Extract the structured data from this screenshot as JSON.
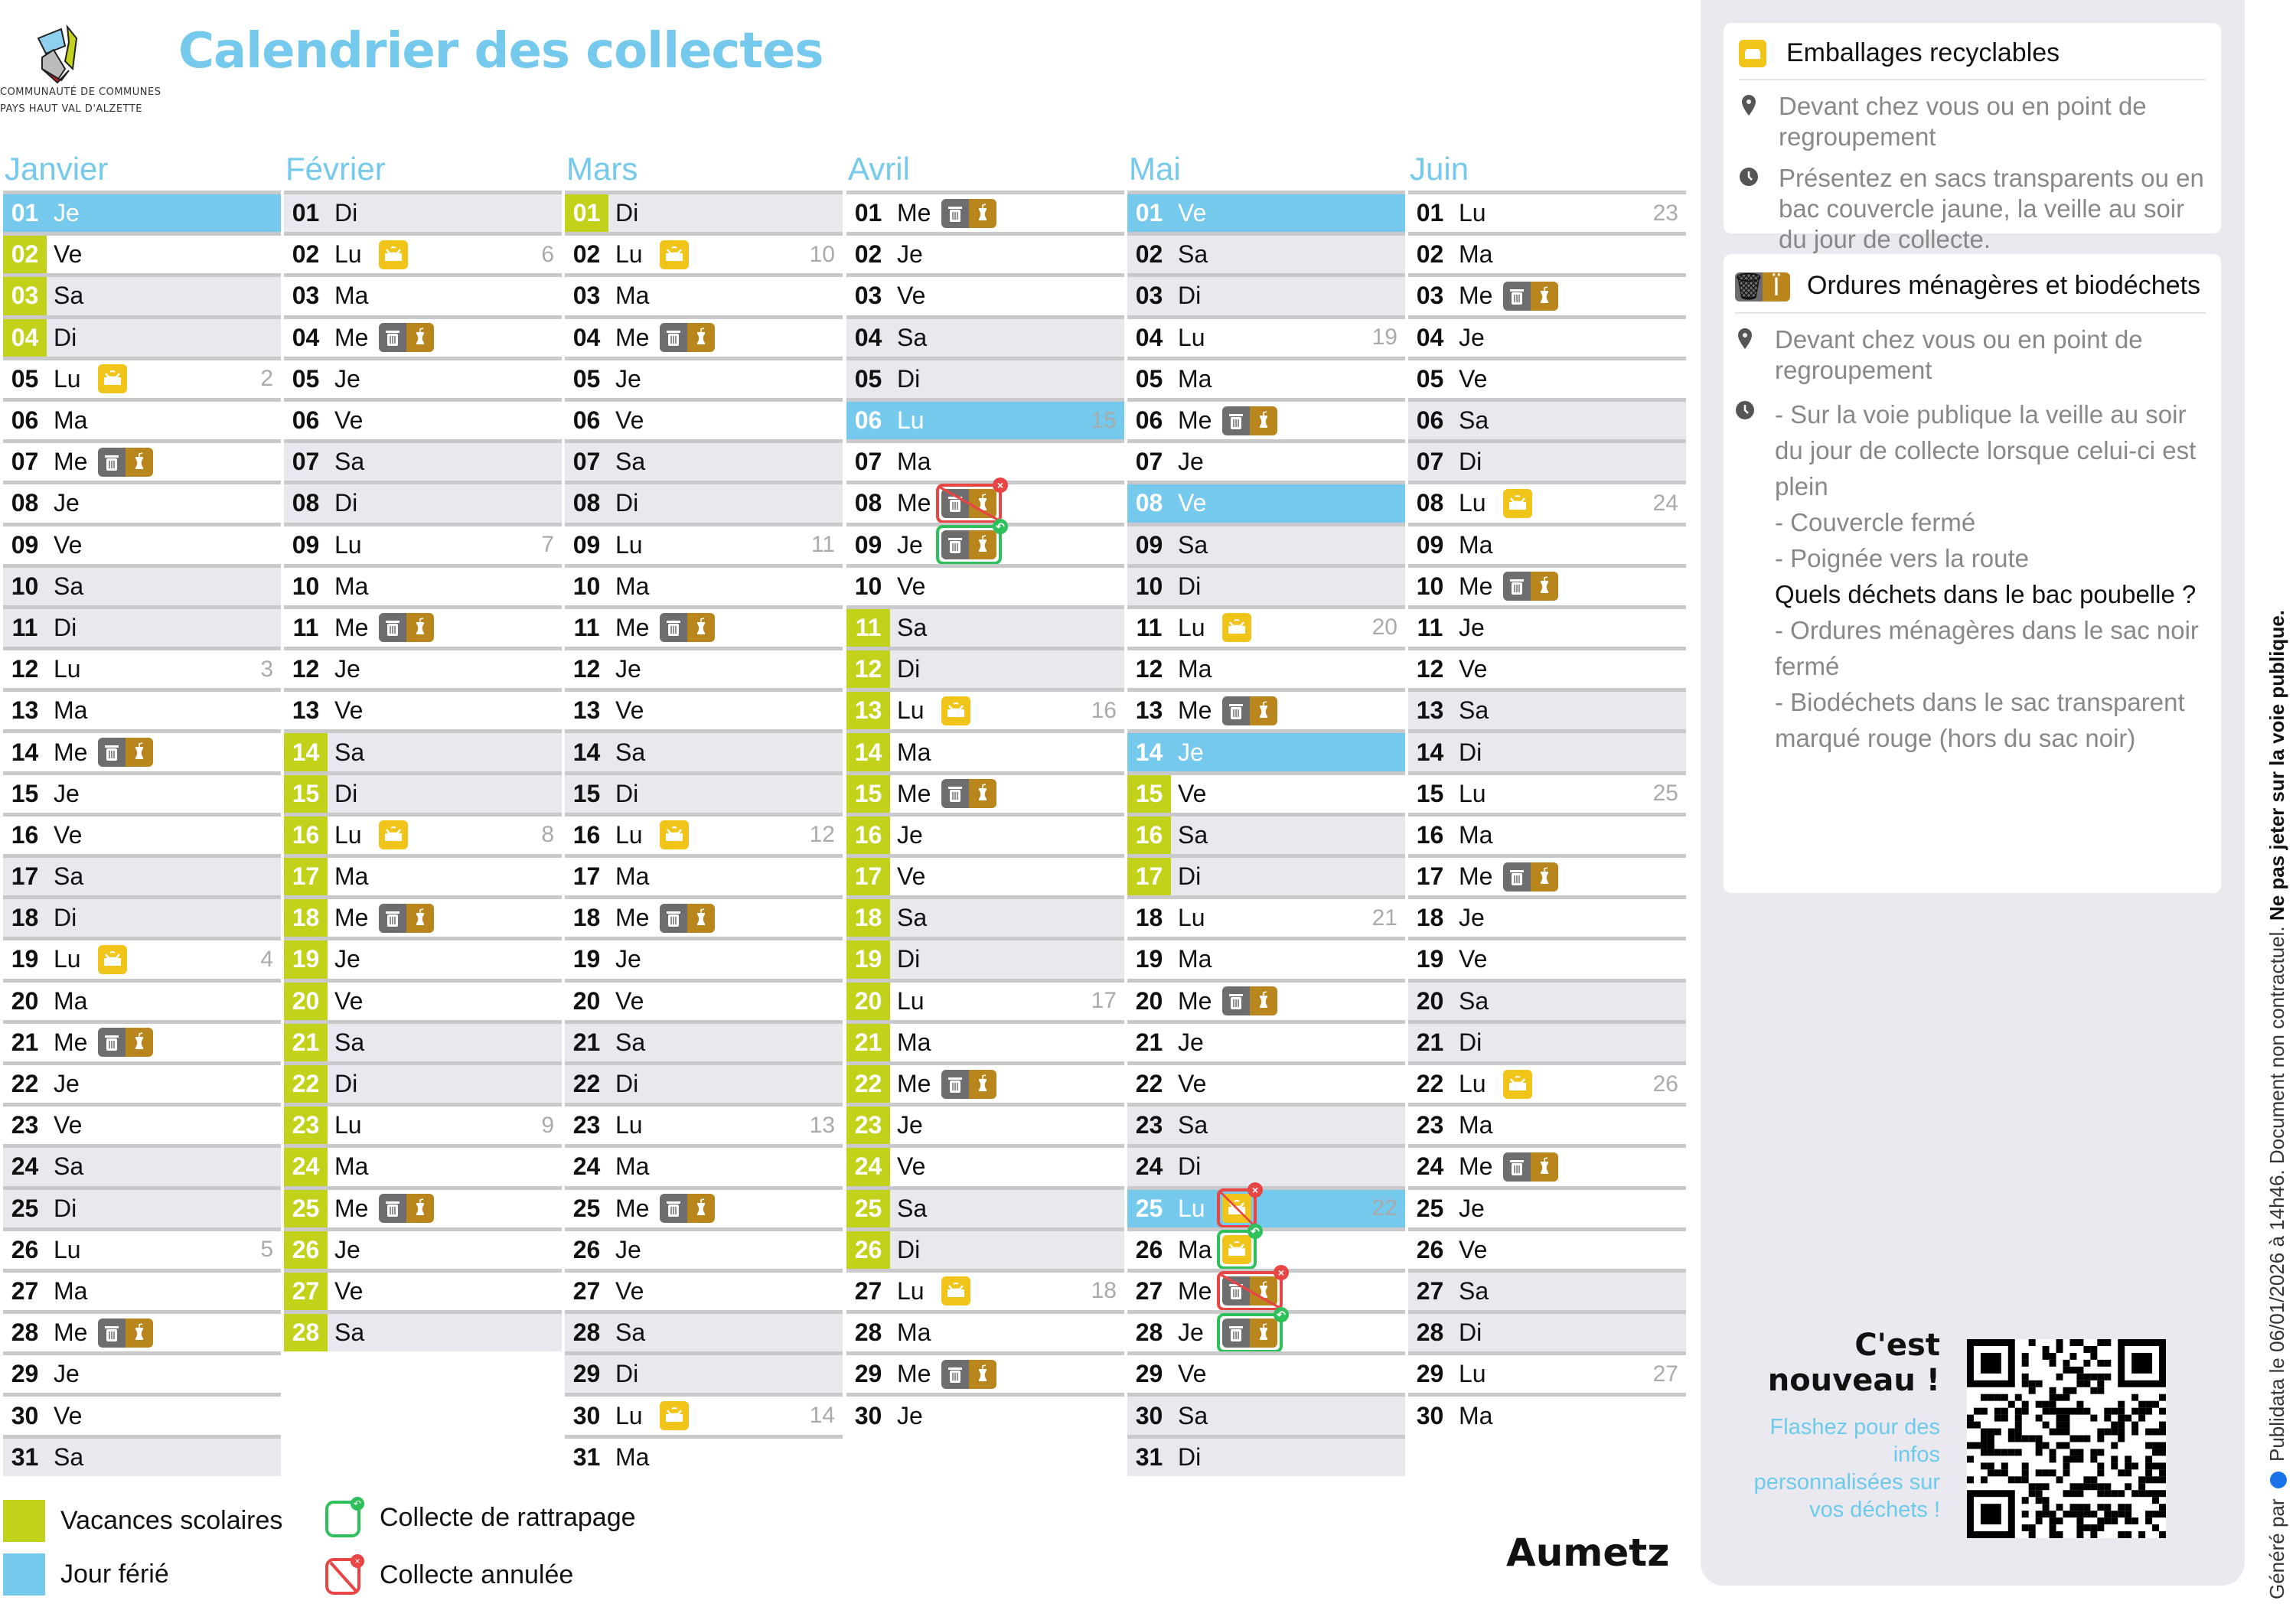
{
  "header": {
    "title": "Calendrier des collectes",
    "logo_line1": "Communauté de communes",
    "logo_line2": "Pays Haut Val d'Alzette"
  },
  "colors": {
    "vacances": "#c2d21a",
    "ferie": "#74c9ec",
    "emballages": "#f0c419",
    "ordures": "#6d6d70",
    "biodechets": "#b8861c",
    "annulee": "#e84545",
    "rattrapage": "#2ec05a"
  },
  "months": [
    {
      "name": "Janvier",
      "days": [
        [
          "01",
          "Je"
        ],
        [
          "02",
          "Ve"
        ],
        [
          "03",
          "Sa"
        ],
        [
          "04",
          "Di"
        ],
        [
          "05",
          "Lu"
        ],
        [
          "06",
          "Ma"
        ],
        [
          "07",
          "Me"
        ],
        [
          "08",
          "Je"
        ],
        [
          "09",
          "Ve"
        ],
        [
          "10",
          "Sa"
        ],
        [
          "11",
          "Di"
        ],
        [
          "12",
          "Lu"
        ],
        [
          "13",
          "Ma"
        ],
        [
          "14",
          "Me"
        ],
        [
          "15",
          "Je"
        ],
        [
          "16",
          "Ve"
        ],
        [
          "17",
          "Sa"
        ],
        [
          "18",
          "Di"
        ],
        [
          "19",
          "Lu"
        ],
        [
          "20",
          "Ma"
        ],
        [
          "21",
          "Me"
        ],
        [
          "22",
          "Je"
        ],
        [
          "23",
          "Ve"
        ],
        [
          "24",
          "Sa"
        ],
        [
          "25",
          "Di"
        ],
        [
          "26",
          "Lu"
        ],
        [
          "27",
          "Ma"
        ],
        [
          "28",
          "Me"
        ],
        [
          "29",
          "Je"
        ],
        [
          "30",
          "Ve"
        ],
        [
          "31",
          "Sa"
        ]
      ],
      "holidays": [
        "01"
      ],
      "vacances": [
        "02",
        "03",
        "04"
      ],
      "week_numbers": {
        "05": "2",
        "12": "3",
        "19": "4",
        "26": "5"
      },
      "collections": {
        "05": {
          "type": "emballages"
        },
        "19": {
          "type": "emballages"
        },
        "07": {
          "type": "ordures-biodechets"
        },
        "14": {
          "type": "ordures-biodechets"
        },
        "21": {
          "type": "ordures-biodechets"
        },
        "28": {
          "type": "ordures-biodechets"
        }
      }
    },
    {
      "name": "Février",
      "days": [
        [
          "01",
          "Di"
        ],
        [
          "02",
          "Lu"
        ],
        [
          "03",
          "Ma"
        ],
        [
          "04",
          "Me"
        ],
        [
          "05",
          "Je"
        ],
        [
          "06",
          "Ve"
        ],
        [
          "07",
          "Sa"
        ],
        [
          "08",
          "Di"
        ],
        [
          "09",
          "Lu"
        ],
        [
          "10",
          "Ma"
        ],
        [
          "11",
          "Me"
        ],
        [
          "12",
          "Je"
        ],
        [
          "13",
          "Ve"
        ],
        [
          "14",
          "Sa"
        ],
        [
          "15",
          "Di"
        ],
        [
          "16",
          "Lu"
        ],
        [
          "17",
          "Ma"
        ],
        [
          "18",
          "Me"
        ],
        [
          "19",
          "Je"
        ],
        [
          "20",
          "Ve"
        ],
        [
          "21",
          "Sa"
        ],
        [
          "22",
          "Di"
        ],
        [
          "23",
          "Lu"
        ],
        [
          "24",
          "Ma"
        ],
        [
          "25",
          "Me"
        ],
        [
          "26",
          "Je"
        ],
        [
          "27",
          "Ve"
        ],
        [
          "28",
          "Sa"
        ]
      ],
      "holidays": [],
      "vacances": [
        "14",
        "15",
        "16",
        "17",
        "18",
        "19",
        "20",
        "21",
        "22",
        "23",
        "24",
        "25",
        "26",
        "27",
        "28"
      ],
      "week_numbers": {
        "02": "6",
        "09": "7",
        "16": "8",
        "23": "9"
      },
      "collections": {
        "02": {
          "type": "emballages"
        },
        "16": {
          "type": "emballages"
        },
        "04": {
          "type": "ordures-biodechets"
        },
        "11": {
          "type": "ordures-biodechets"
        },
        "18": {
          "type": "ordures-biodechets"
        },
        "25": {
          "type": "ordures-biodechets"
        }
      }
    },
    {
      "name": "Mars",
      "days": [
        [
          "01",
          "Di"
        ],
        [
          "02",
          "Lu"
        ],
        [
          "03",
          "Ma"
        ],
        [
          "04",
          "Me"
        ],
        [
          "05",
          "Je"
        ],
        [
          "06",
          "Ve"
        ],
        [
          "07",
          "Sa"
        ],
        [
          "08",
          "Di"
        ],
        [
          "09",
          "Lu"
        ],
        [
          "10",
          "Ma"
        ],
        [
          "11",
          "Me"
        ],
        [
          "12",
          "Je"
        ],
        [
          "13",
          "Ve"
        ],
        [
          "14",
          "Sa"
        ],
        [
          "15",
          "Di"
        ],
        [
          "16",
          "Lu"
        ],
        [
          "17",
          "Ma"
        ],
        [
          "18",
          "Me"
        ],
        [
          "19",
          "Je"
        ],
        [
          "20",
          "Ve"
        ],
        [
          "21",
          "Sa"
        ],
        [
          "22",
          "Di"
        ],
        [
          "23",
          "Lu"
        ],
        [
          "24",
          "Ma"
        ],
        [
          "25",
          "Me"
        ],
        [
          "26",
          "Je"
        ],
        [
          "27",
          "Ve"
        ],
        [
          "28",
          "Sa"
        ],
        [
          "29",
          "Di"
        ],
        [
          "30",
          "Lu"
        ],
        [
          "31",
          "Ma"
        ]
      ],
      "holidays": [],
      "vacances": [
        "01"
      ],
      "week_numbers": {
        "02": "10",
        "09": "11",
        "16": "12",
        "23": "13",
        "30": "14"
      },
      "collections": {
        "02": {
          "type": "emballages"
        },
        "16": {
          "type": "emballages"
        },
        "30": {
          "type": "emballages"
        },
        "04": {
          "type": "ordures-biodechets"
        },
        "11": {
          "type": "ordures-biodechets"
        },
        "18": {
          "type": "ordures-biodechets"
        },
        "25": {
          "type": "ordures-biodechets"
        }
      }
    },
    {
      "name": "Avril",
      "days": [
        [
          "01",
          "Me"
        ],
        [
          "02",
          "Je"
        ],
        [
          "03",
          "Ve"
        ],
        [
          "04",
          "Sa"
        ],
        [
          "05",
          "Di"
        ],
        [
          "06",
          "Lu"
        ],
        [
          "07",
          "Ma"
        ],
        [
          "08",
          "Me"
        ],
        [
          "09",
          "Je"
        ],
        [
          "10",
          "Ve"
        ],
        [
          "11",
          "Sa"
        ],
        [
          "12",
          "Di"
        ],
        [
          "13",
          "Lu"
        ],
        [
          "14",
          "Ma"
        ],
        [
          "15",
          "Me"
        ],
        [
          "16",
          "Je"
        ],
        [
          "17",
          "Ve"
        ],
        [
          "18",
          "Sa"
        ],
        [
          "19",
          "Di"
        ],
        [
          "20",
          "Lu"
        ],
        [
          "21",
          "Ma"
        ],
        [
          "22",
          "Me"
        ],
        [
          "23",
          "Je"
        ],
        [
          "24",
          "Ve"
        ],
        [
          "25",
          "Sa"
        ],
        [
          "26",
          "Di"
        ],
        [
          "27",
          "Lu"
        ],
        [
          "28",
          "Ma"
        ],
        [
          "29",
          "Me"
        ],
        [
          "30",
          "Je"
        ]
      ],
      "holidays": [
        "06"
      ],
      "vacances": [
        "11",
        "12",
        "13",
        "14",
        "15",
        "16",
        "17",
        "18",
        "19",
        "20",
        "21",
        "22",
        "23",
        "24",
        "25",
        "26"
      ],
      "week_numbers": {
        "06": "15",
        "13": "16",
        "20": "17",
        "27": "18"
      },
      "collections": {
        "13": {
          "type": "emballages"
        },
        "27": {
          "type": "emballages"
        },
        "01": {
          "type": "ordures-biodechets"
        },
        "08": {
          "type": "ordures-biodechets",
          "status": "annulee"
        },
        "09": {
          "type": "ordures-biodechets",
          "status": "rattrapage"
        },
        "15": {
          "type": "ordures-biodechets"
        },
        "22": {
          "type": "ordures-biodechets"
        },
        "29": {
          "type": "ordures-biodechets"
        }
      }
    },
    {
      "name": "Mai",
      "days": [
        [
          "01",
          "Ve"
        ],
        [
          "02",
          "Sa"
        ],
        [
          "03",
          "Di"
        ],
        [
          "04",
          "Lu"
        ],
        [
          "05",
          "Ma"
        ],
        [
          "06",
          "Me"
        ],
        [
          "07",
          "Je"
        ],
        [
          "08",
          "Ve"
        ],
        [
          "09",
          "Sa"
        ],
        [
          "10",
          "Di"
        ],
        [
          "11",
          "Lu"
        ],
        [
          "12",
          "Ma"
        ],
        [
          "13",
          "Me"
        ],
        [
          "14",
          "Je"
        ],
        [
          "15",
          "Ve"
        ],
        [
          "16",
          "Sa"
        ],
        [
          "17",
          "Di"
        ],
        [
          "18",
          "Lu"
        ],
        [
          "19",
          "Ma"
        ],
        [
          "20",
          "Me"
        ],
        [
          "21",
          "Je"
        ],
        [
          "22",
          "Ve"
        ],
        [
          "23",
          "Sa"
        ],
        [
          "24",
          "Di"
        ],
        [
          "25",
          "Lu"
        ],
        [
          "26",
          "Ma"
        ],
        [
          "27",
          "Me"
        ],
        [
          "28",
          "Je"
        ],
        [
          "29",
          "Ve"
        ],
        [
          "30",
          "Sa"
        ],
        [
          "31",
          "Di"
        ]
      ],
      "holidays": [
        "01",
        "08",
        "14",
        "25"
      ],
      "vacances": [
        "15",
        "16",
        "17"
      ],
      "week_numbers": {
        "04": "19",
        "11": "20",
        "18": "21",
        "25": "22"
      },
      "collections": {
        "11": {
          "type": "emballages"
        },
        "25": {
          "type": "emballages",
          "status": "annulee"
        },
        "26": {
          "type": "emballages",
          "status": "rattrapage"
        },
        "06": {
          "type": "ordures-biodechets"
        },
        "13": {
          "type": "ordures-biodechets"
        },
        "20": {
          "type": "ordures-biodechets"
        },
        "27": {
          "type": "ordures-biodechets",
          "status": "annulee"
        },
        "28": {
          "type": "ordures-biodechets",
          "status": "rattrapage"
        }
      }
    },
    {
      "name": "Juin",
      "days": [
        [
          "01",
          "Lu"
        ],
        [
          "02",
          "Ma"
        ],
        [
          "03",
          "Me"
        ],
        [
          "04",
          "Je"
        ],
        [
          "05",
          "Ve"
        ],
        [
          "06",
          "Sa"
        ],
        [
          "07",
          "Di"
        ],
        [
          "08",
          "Lu"
        ],
        [
          "09",
          "Ma"
        ],
        [
          "10",
          "Me"
        ],
        [
          "11",
          "Je"
        ],
        [
          "12",
          "Ve"
        ],
        [
          "13",
          "Sa"
        ],
        [
          "14",
          "Di"
        ],
        [
          "15",
          "Lu"
        ],
        [
          "16",
          "Ma"
        ],
        [
          "17",
          "Me"
        ],
        [
          "18",
          "Je"
        ],
        [
          "19",
          "Ve"
        ],
        [
          "20",
          "Sa"
        ],
        [
          "21",
          "Di"
        ],
        [
          "22",
          "Lu"
        ],
        [
          "23",
          "Ma"
        ],
        [
          "24",
          "Me"
        ],
        [
          "25",
          "Je"
        ],
        [
          "26",
          "Ve"
        ],
        [
          "27",
          "Sa"
        ],
        [
          "28",
          "Di"
        ],
        [
          "29",
          "Lu"
        ],
        [
          "30",
          "Ma"
        ]
      ],
      "holidays": [],
      "vacances": [],
      "week_numbers": {
        "01": "23",
        "08": "24",
        "15": "25",
        "22": "26",
        "29": "27"
      },
      "collections": {
        "08": {
          "type": "emballages"
        },
        "22": {
          "type": "emballages"
        },
        "03": {
          "type": "ordures-biodechets"
        },
        "10": {
          "type": "ordures-biodechets"
        },
        "17": {
          "type": "ordures-biodechets"
        },
        "24": {
          "type": "ordures-biodechets"
        }
      }
    }
  ],
  "legend": {
    "vacances": "Vacances scolaires",
    "ferie": "Jour férié",
    "rattrapage": "Collecte de rattrapage",
    "annulee": "Collecte annulée"
  },
  "commune": "Aumetz",
  "info": {
    "emballages": {
      "title": "Emballages recyclables",
      "location": "Devant chez vous ou en point de regroupement",
      "schedule": "Présentez en sacs transparents ou en bac couvercle jaune, la veille au soir du jour de collecte."
    },
    "ordures": {
      "title": "Ordures ménagères et biodéchets",
      "location": "Devant chez vous ou en point de regroupement",
      "schedule_lines": [
        "- Sur la voie publique la veille au soir du jour de collecte lorsque celui-ci est plein",
        "- Couvercle fermé",
        "- Poignée vers la route"
      ],
      "question": "Quels déchets dans le bac poubelle ?",
      "answer_lines": [
        "- Ordures ménagères dans le sac noir fermé",
        "- Biodéchets dans le sac transparent marqué rouge (hors du sac noir)"
      ]
    }
  },
  "promo": {
    "headline": "C'est nouveau !",
    "text": "Flashez pour des infos personnalisées sur vos déchets !"
  },
  "footer": {
    "generated_by": "Généré par",
    "brand": "Publidata",
    "disclaimer": "le 06/01/2026 à 14h46. Document non contractuel.",
    "warning": "Ne pas jeter sur la voie publique."
  }
}
